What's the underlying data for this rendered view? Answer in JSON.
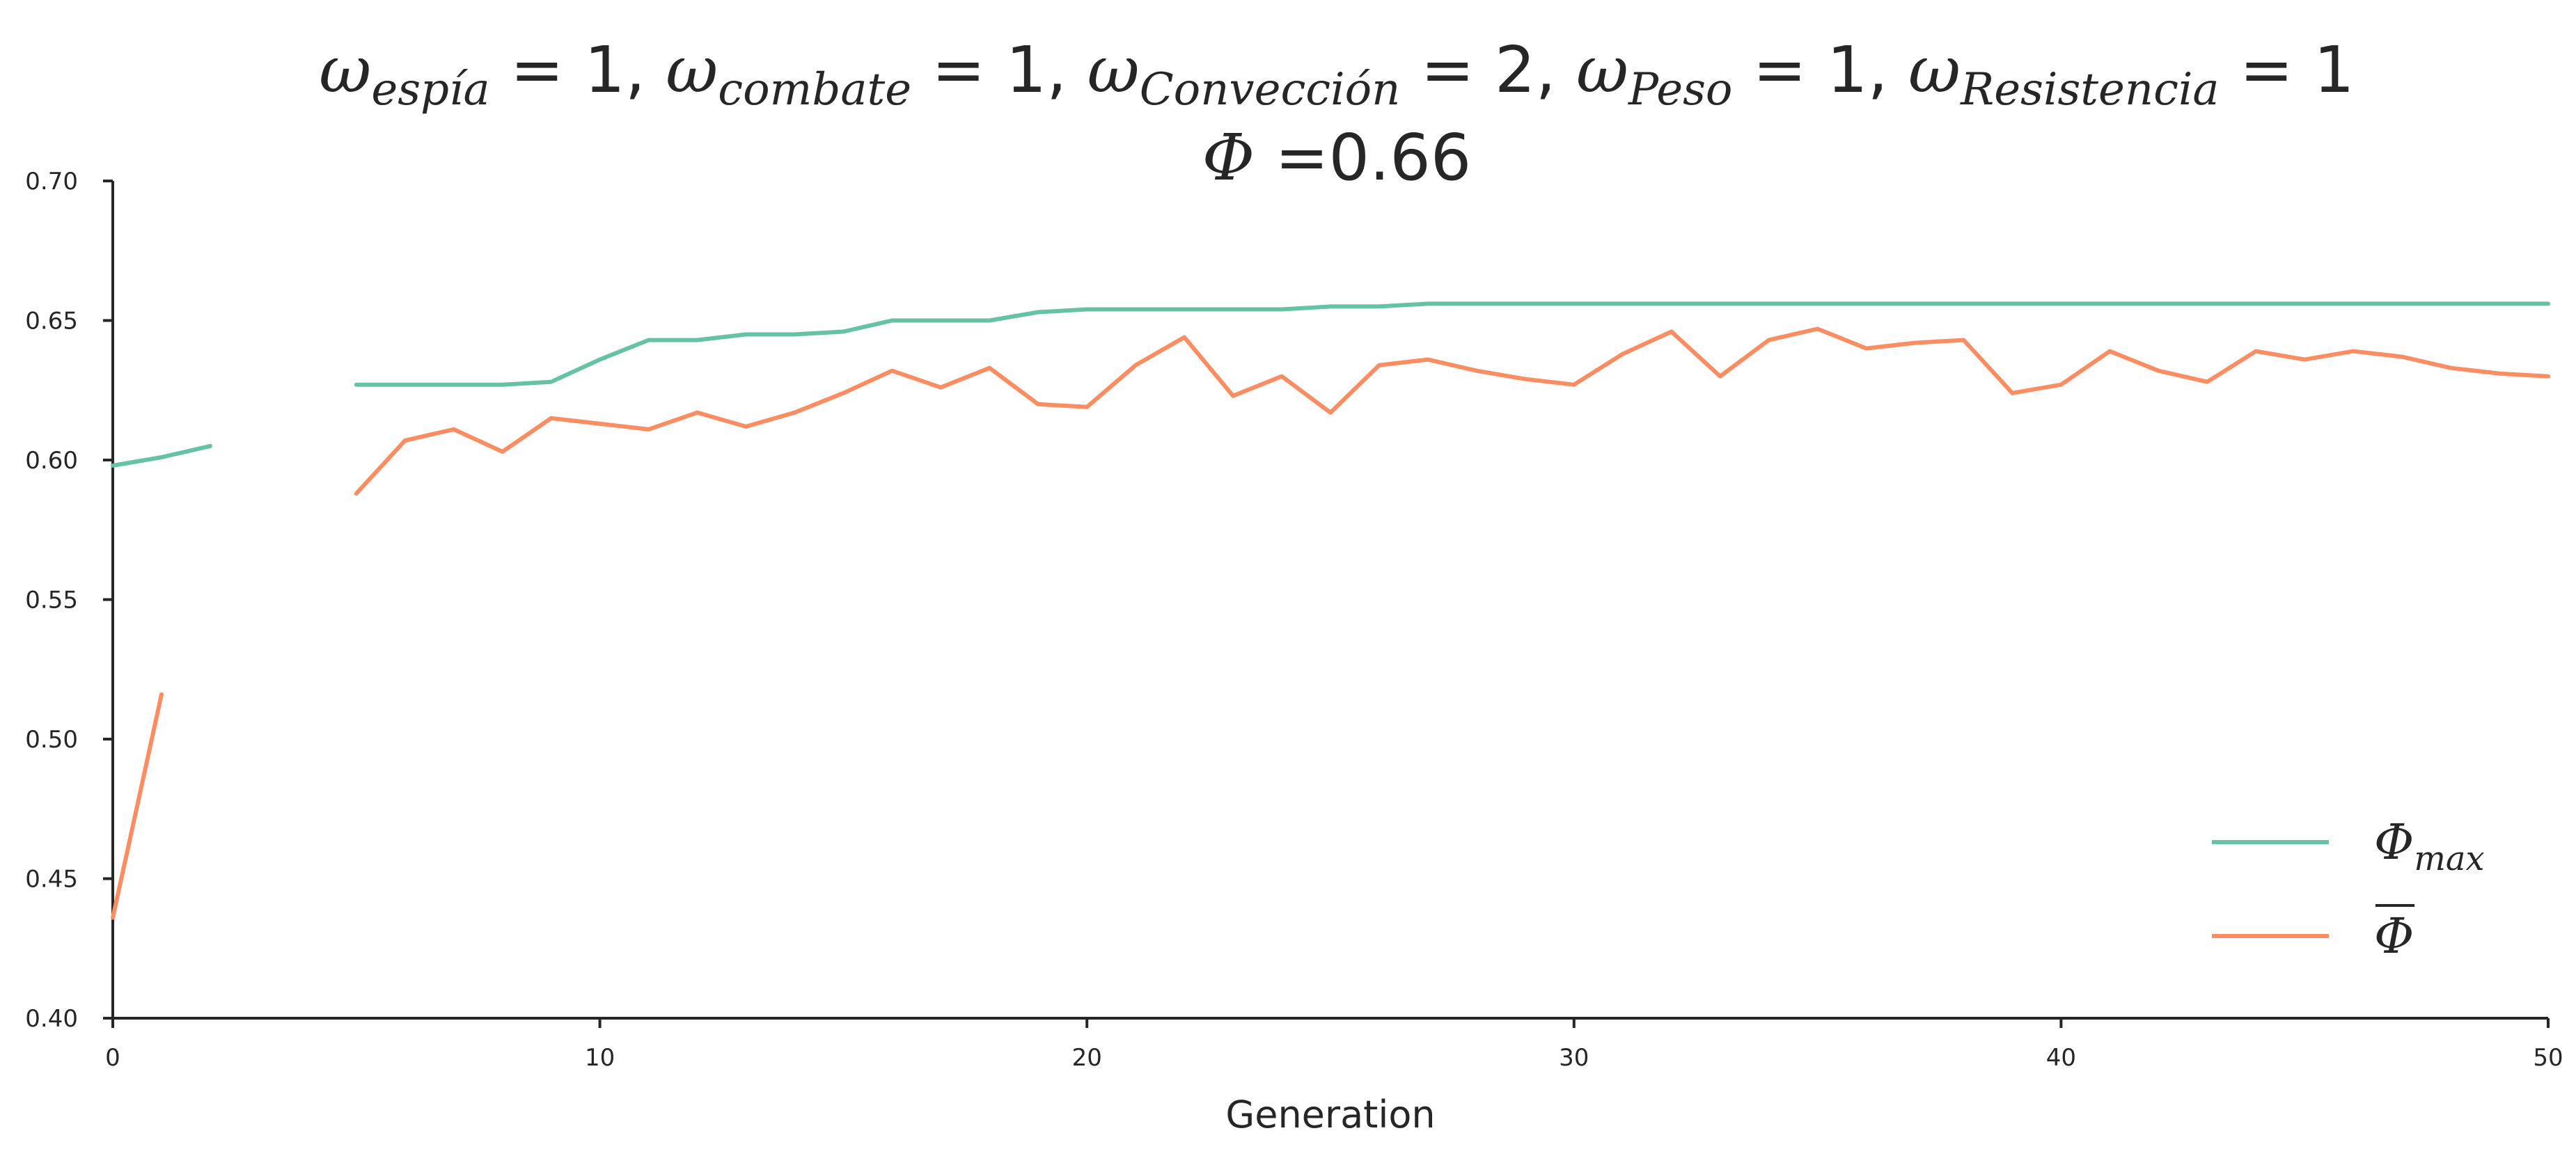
{
  "chart_data": {
    "type": "line",
    "title_line1": [
      {
        "sym": "ω",
        "sub": "espía",
        "eq": " = 1"
      },
      {
        "sym": "ω",
        "sub": "combate",
        "eq": " = 1"
      },
      {
        "sym": "ω",
        "sub": "Convección",
        "eq": " = 2"
      },
      {
        "sym": "ω",
        "sub": "Peso",
        "eq": " = 1"
      },
      {
        "sym": "ω",
        "sub": "Resistencia",
        "eq": " = 1"
      }
    ],
    "title_line2": {
      "sym": "Φ",
      "text": " =0.66"
    },
    "xlabel": "Generation",
    "ylabel": "",
    "xlim": [
      0,
      50
    ],
    "ylim": [
      0.4,
      0.7
    ],
    "xticks": [
      0,
      10,
      20,
      30,
      40,
      50
    ],
    "yticks": [
      "0.40",
      "0.45",
      "0.50",
      "0.55",
      "0.60",
      "0.65",
      "0.70"
    ],
    "grid": false,
    "legend_position": "bottom-right",
    "series": [
      {
        "name_symbol": "Φ",
        "name_sub": "max",
        "color": "#66c2a5",
        "segments": [
          {
            "x": [
              0,
              1,
              2
            ],
            "y": [
              0.598,
              0.601,
              0.605
            ]
          },
          {
            "x": [
              5,
              6,
              7,
              8,
              9,
              10,
              11,
              12,
              13,
              14,
              15,
              16,
              17,
              18,
              19,
              20,
              21,
              22,
              23,
              24,
              25,
              26,
              27,
              28,
              29,
              30,
              31,
              32,
              33,
              34,
              35,
              36,
              37,
              38,
              39,
              40,
              41,
              42,
              43,
              44,
              45,
              46,
              47,
              48,
              49,
              50
            ],
            "y": [
              0.627,
              0.627,
              0.627,
              0.627,
              0.628,
              0.636,
              0.643,
              0.643,
              0.645,
              0.645,
              0.646,
              0.65,
              0.65,
              0.65,
              0.653,
              0.654,
              0.654,
              0.654,
              0.654,
              0.654,
              0.655,
              0.655,
              0.656,
              0.656,
              0.656,
              0.656,
              0.656,
              0.656,
              0.656,
              0.656,
              0.656,
              0.656,
              0.656,
              0.656,
              0.656,
              0.656,
              0.656,
              0.656,
              0.656,
              0.656,
              0.656,
              0.656,
              0.656,
              0.656,
              0.656,
              0.656
            ]
          }
        ]
      },
      {
        "name_symbol": "Φ",
        "name_overline": true,
        "color": "#fc8d62",
        "segments": [
          {
            "x": [
              0,
              1
            ],
            "y": [
              0.436,
              0.516
            ]
          },
          {
            "x": [
              5,
              6,
              7,
              8,
              9,
              10,
              11,
              12,
              13,
              14,
              15,
              16,
              17,
              18,
              19,
              20,
              21,
              22,
              23,
              24,
              25,
              26,
              27,
              28,
              29,
              30,
              31,
              32,
              33,
              34,
              35,
              36,
              37,
              38,
              39,
              40,
              41,
              42,
              43,
              44,
              45,
              46,
              47,
              48,
              49,
              50
            ],
            "y": [
              0.588,
              0.607,
              0.611,
              0.603,
              0.615,
              0.613,
              0.611,
              0.617,
              0.612,
              0.617,
              0.624,
              0.632,
              0.626,
              0.633,
              0.62,
              0.619,
              0.634,
              0.644,
              0.623,
              0.63,
              0.617,
              0.634,
              0.636,
              0.632,
              0.629,
              0.627,
              0.638,
              0.646,
              0.63,
              0.643,
              0.647,
              0.64,
              0.642,
              0.643,
              0.624,
              0.627,
              0.639,
              0.632,
              0.628,
              0.639,
              0.636,
              0.639,
              0.637,
              0.633,
              0.631,
              0.63
            ]
          }
        ]
      }
    ]
  }
}
